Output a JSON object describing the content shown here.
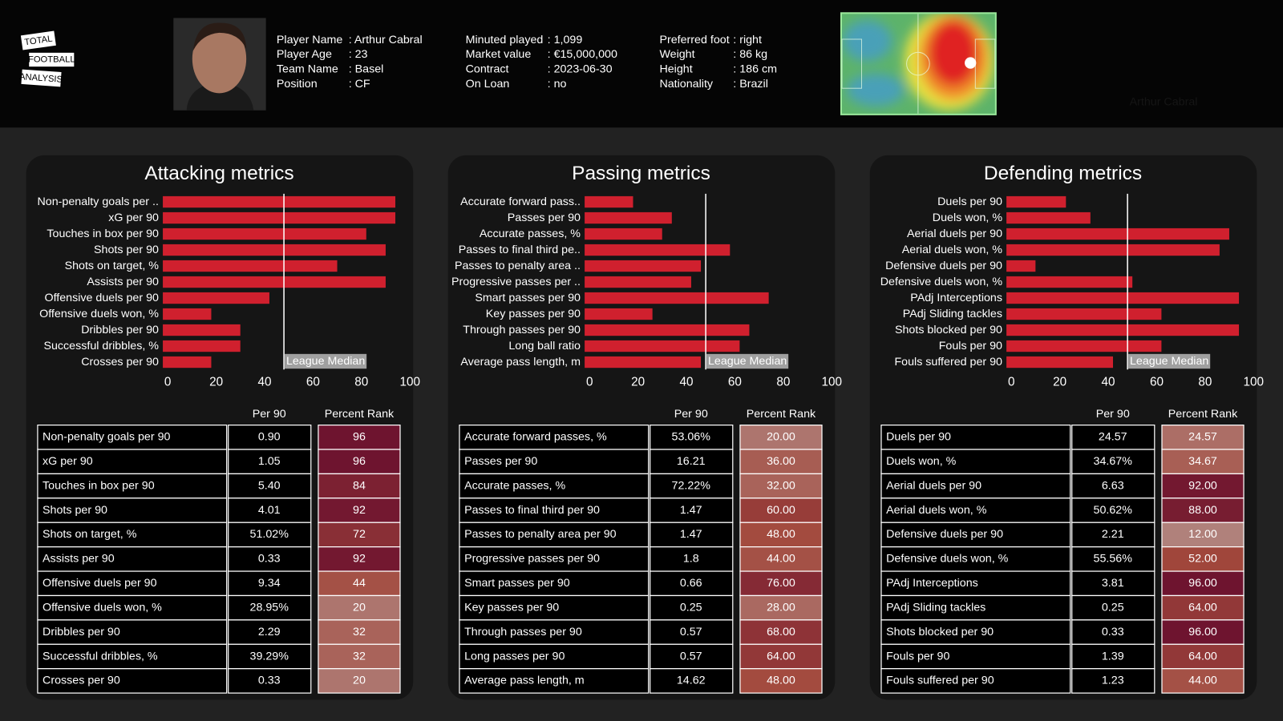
{
  "header": {
    "logo": [
      "TOTAL",
      "FOOTBALL",
      "ANALYSIS"
    ],
    "player_info": [
      [
        {
          "label": "Player Name",
          "value": ": Arthur Cabral"
        },
        {
          "label": "Player Age",
          "value": ": 23"
        },
        {
          "label": "Team Name",
          "value": ": Basel"
        },
        {
          "label": "Position",
          "value": ": CF"
        }
      ],
      [
        {
          "label": "Minuted played",
          "value": ": 1,099"
        },
        {
          "label": "Market value",
          "value": ": €15,000,000"
        },
        {
          "label": "Contract",
          "value": ": 2023-06-30"
        },
        {
          "label": "On Loan",
          "value": ": no"
        }
      ],
      [
        {
          "label": "Preferred foot",
          "value": ": right"
        },
        {
          "label": "Weight",
          "value": ": 86 kg"
        },
        {
          "label": "Height",
          "value": ": 186 cm"
        },
        {
          "label": "Nationality",
          "value": ": Brazil"
        }
      ]
    ],
    "heatmap_caption": "Arthur Cabral"
  },
  "chart_data": [
    {
      "type": "bar",
      "orientation": "horizontal",
      "title": "Attacking metrics",
      "color": "#d0202e",
      "categories": [
        "Non-penalty goals per ..",
        "xG per 90",
        "Touches in box per 90",
        "Shots per 90",
        "Shots on target, %",
        "Assists per 90",
        "Offensive duels per 90",
        "Offensive duels won, %",
        "Dribbles per 90",
        "Successful dribbles, %",
        "Crosses per 90"
      ],
      "values": [
        96,
        96,
        84,
        92,
        72,
        92,
        44,
        20,
        32,
        32,
        20
      ],
      "xlim": [
        0,
        100
      ],
      "xticks": [
        0,
        20,
        40,
        60,
        80,
        100
      ],
      "median": 50,
      "median_label": "League Median"
    },
    {
      "type": "bar",
      "orientation": "horizontal",
      "title": "Passing metrics",
      "color": "#d0202e",
      "categories": [
        "Accurate forward pass..",
        "Passes per 90",
        "Accurate passes, %",
        "Passes to final third pe..",
        "Passes to penalty area ..",
        "Progressive passes per ..",
        "Smart passes per 90",
        "Key passes per 90",
        "Through passes per 90",
        "Long ball ratio",
        "Average pass length, m"
      ],
      "values": [
        20,
        36,
        32,
        60,
        48,
        44,
        76,
        28,
        68,
        64,
        48
      ],
      "xlim": [
        0,
        100
      ],
      "xticks": [
        0,
        20,
        40,
        60,
        80,
        100
      ],
      "median": 50,
      "median_label": "League Median"
    },
    {
      "type": "bar",
      "orientation": "horizontal",
      "title": "Defending metrics",
      "color": "#d0202e",
      "categories": [
        "Duels per 90",
        "Duels won, %",
        "Aerial duels per 90",
        "Aerial duels won, %",
        "Defensive duels per 90",
        "Defensive duels won, %",
        "PAdj Interceptions",
        "PAdj Sliding tackles",
        "Shots blocked per 90",
        "Fouls per 90",
        "Fouls suffered per 90"
      ],
      "values": [
        24.57,
        34.67,
        92,
        88,
        12,
        52,
        96,
        64,
        96,
        64,
        44
      ],
      "xlim": [
        0,
        100
      ],
      "xticks": [
        0,
        20,
        40,
        60,
        80,
        100
      ],
      "median": 50,
      "median_label": "League Median"
    }
  ],
  "tables": [
    {
      "headers": [
        "Per 90",
        "Percent Rank"
      ],
      "color_scale": [
        "#b5938f",
        "#a2483c",
        "#6a0f2e"
      ],
      "rows": [
        [
          "Non-penalty goals per 90",
          "0.90",
          "96"
        ],
        [
          "xG per 90",
          "1.05",
          "96"
        ],
        [
          "Touches in box per 90",
          "5.40",
          "84"
        ],
        [
          "Shots per 90",
          "4.01",
          "92"
        ],
        [
          "Shots on target, %",
          "51.02%",
          "72"
        ],
        [
          "Assists per 90",
          "0.33",
          "92"
        ],
        [
          "Offensive duels per 90",
          "9.34",
          "44"
        ],
        [
          "Offensive duels won, %",
          "28.95%",
          "20"
        ],
        [
          "Dribbles per 90",
          "2.29",
          "32"
        ],
        [
          "Successful dribbles, %",
          "39.29%",
          "32"
        ],
        [
          "Crosses per 90",
          "0.33",
          "20"
        ]
      ]
    },
    {
      "headers": [
        "Per 90",
        "Percent Rank"
      ],
      "color_scale": [
        "#b5938f",
        "#a2483c",
        "#6a0f2e"
      ],
      "rows": [
        [
          "Accurate forward passes, %",
          "53.06%",
          "20.00"
        ],
        [
          "Passes per 90",
          "16.21",
          "36.00"
        ],
        [
          "Accurate passes, %",
          "72.22%",
          "32.00"
        ],
        [
          "Passes to final third per 90",
          "1.47",
          "60.00"
        ],
        [
          "Passes to penalty area per 90",
          "1.47",
          "48.00"
        ],
        [
          "Progressive passes per 90",
          "1.8",
          "44.00"
        ],
        [
          "Smart passes per 90",
          "0.66",
          "76.00"
        ],
        [
          "Key passes per 90",
          "0.25",
          "28.00"
        ],
        [
          "Through passes per 90",
          "0.57",
          "68.00"
        ],
        [
          "Long passes per 90",
          "0.57",
          "64.00"
        ],
        [
          "Average pass length, m",
          "14.62",
          "48.00"
        ]
      ]
    },
    {
      "headers": [
        "Per 90",
        "Percent Rank"
      ],
      "color_scale": [
        "#b5938f",
        "#a2483c",
        "#6a0f2e"
      ],
      "rows": [
        [
          "Duels per 90",
          "24.57",
          "24.57"
        ],
        [
          "Duels won, %",
          "34.67%",
          "34.67"
        ],
        [
          "Aerial duels per 90",
          "6.63",
          "92.00"
        ],
        [
          "Aerial duels won, %",
          "50.62%",
          "88.00"
        ],
        [
          "Defensive duels per 90",
          "2.21",
          "12.00"
        ],
        [
          "Defensive duels won, %",
          "55.56%",
          "52.00"
        ],
        [
          "PAdj Interceptions",
          "3.81",
          "96.00"
        ],
        [
          "PAdj Sliding tackles",
          "0.25",
          "64.00"
        ],
        [
          "Shots blocked per 90",
          "0.33",
          "96.00"
        ],
        [
          "Fouls per 90",
          "1.39",
          "64.00"
        ],
        [
          "Fouls suffered per 90",
          "1.23",
          "44.00"
        ]
      ]
    }
  ]
}
